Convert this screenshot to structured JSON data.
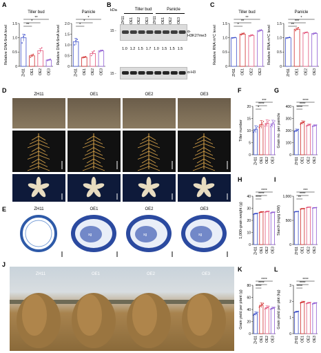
{
  "colors": {
    "blue": "#3d4fc9",
    "red": "#d02a2a",
    "pink": "#e2537a",
    "purple": "#8e5bd1",
    "black": "#000000"
  },
  "panels": {
    "A": "A",
    "B": "B",
    "C": "C",
    "D": "D",
    "E": "E",
    "F": "F",
    "G": "G",
    "H": "H",
    "I": "I",
    "J": "J",
    "K": "K",
    "L": "L"
  },
  "A": {
    "headers": [
      "Tiller bud",
      "Panicle"
    ],
    "charts": [
      {
        "type": "bar",
        "title": "Tiller bud",
        "ylabel": "Relative DNA 6mA level",
        "ylim": [
          0,
          1.5
        ],
        "yticks": [
          "0",
          "0.5",
          "1.0",
          "1.5"
        ],
        "categories": [
          "ZH11",
          "OE1",
          "OE2",
          "OE3"
        ],
        "values": [
          1.0,
          0.37,
          0.55,
          0.22
        ],
        "points": [
          [
            0.82,
            1.05,
            1.1
          ],
          [
            0.32,
            0.36,
            0.42
          ],
          [
            0.45,
            0.55,
            0.65
          ],
          [
            0.2,
            0.22,
            0.25
          ]
        ],
        "errors": [
          0.12,
          0.04,
          0.07,
          0.02
        ],
        "sig": [
          {
            "from": 0,
            "to": 3,
            "label": "**"
          },
          {
            "from": 0,
            "to": 2,
            "label": "*"
          },
          {
            "from": 0,
            "to": 1,
            "label": "**"
          }
        ]
      },
      {
        "type": "bar",
        "title": "Panicle",
        "ylabel": "Relative DNA 6mA level",
        "ylim": [
          0,
          2.0
        ],
        "yticks": [
          "0",
          "0.5",
          "1.0",
          "1.5",
          "2.0"
        ],
        "categories": [
          "ZH11",
          "OE1",
          "OE2",
          "OE3"
        ],
        "values": [
          1.15,
          0.42,
          0.6,
          0.72
        ],
        "points": [
          [
            1.0,
            1.2,
            1.25
          ],
          [
            0.4,
            0.42,
            0.45
          ],
          [
            0.5,
            0.65,
            0.72
          ],
          [
            0.68,
            0.72,
            0.75
          ]
        ],
        "errors": [
          0.16,
          0.03,
          0.08,
          0.04
        ],
        "sig": [
          {
            "from": 0,
            "to": 3,
            "label": "*"
          },
          {
            "from": 0,
            "to": 2,
            "label": "*"
          },
          {
            "from": 0,
            "to": 1,
            "label": "*"
          }
        ]
      }
    ]
  },
  "B": {
    "kda_label": "kDa",
    "groups": [
      "Tiller bud",
      "Panicle"
    ],
    "lanes": [
      "ZH11",
      "OE1",
      "OE2",
      "OE3",
      "ZH11",
      "OE1",
      "OE2",
      "OE3"
    ],
    "marker1": "15 -",
    "marker2": "15 -",
    "antibody1": "α-H3K27me3",
    "antibody2": "α-H3",
    "ratios": [
      "1.0",
      "1.2",
      "1.5",
      "1.7",
      "1.0",
      "1.5",
      "1.5",
      "1.5"
    ]
  },
  "C": {
    "headers": [
      "Tiller bud",
      "Panicle"
    ],
    "charts": [
      {
        "type": "bar",
        "title": "Tiller bud",
        "ylabel": "Relative RNA m⁶C level",
        "ylim": [
          0,
          1.5
        ],
        "yticks": [
          "0",
          "0.5",
          "1.0",
          "1.5"
        ],
        "categories": [
          "ZH11",
          "OE1",
          "OE2",
          "OE3"
        ],
        "values": [
          1.0,
          1.13,
          1.08,
          1.25
        ],
        "points": [
          [
            0.99,
            1.0,
            1.01
          ],
          [
            1.1,
            1.13,
            1.16
          ],
          [
            1.05,
            1.08,
            1.1
          ],
          [
            1.22,
            1.25,
            1.28
          ]
        ],
        "errors": [
          0.01,
          0.03,
          0.03,
          0.03
        ],
        "sig": [
          {
            "from": 0,
            "to": 3,
            "label": "**"
          },
          {
            "from": 0,
            "to": 2,
            "label": "**"
          },
          {
            "from": 0,
            "to": 1,
            "label": "*"
          }
        ]
      },
      {
        "type": "bar",
        "title": "Panicle",
        "ylabel": "Relative RNA m⁶C level",
        "ylim": [
          0,
          1.5
        ],
        "yticks": [
          "0",
          "0.5",
          "1.0",
          "1.5"
        ],
        "categories": [
          "ZH11",
          "OE1",
          "OE2",
          "OE3"
        ],
        "values": [
          1.0,
          1.3,
          1.18,
          1.15
        ],
        "points": [
          [
            0.98,
            1.0,
            1.02
          ],
          [
            1.25,
            1.3,
            1.35
          ],
          [
            1.15,
            1.18,
            1.2
          ],
          [
            1.12,
            1.15,
            1.17
          ]
        ],
        "errors": [
          0.01,
          0.04,
          0.02,
          0.02
        ],
        "sig": [
          {
            "from": 0,
            "to": 3,
            "label": "*"
          },
          {
            "from": 0,
            "to": 2,
            "label": "***"
          },
          {
            "from": 0,
            "to": 1,
            "label": "**"
          }
        ]
      }
    ]
  },
  "D": {
    "varieties": [
      "ZH11",
      "OE1",
      "OE2",
      "OE3"
    ]
  },
  "E": {
    "varieties": [
      "ZH11",
      "OE1",
      "OE2",
      "OE3"
    ],
    "sg": "sg"
  },
  "F": {
    "type": "bar",
    "ylabel": "Tiller number",
    "ylim": [
      0,
      20
    ],
    "yticks": [
      "0",
      "5",
      "10",
      "15",
      "20"
    ],
    "categories": [
      "ZH11",
      "OE1",
      "OE2",
      "OE3"
    ],
    "values": [
      10.5,
      12.5,
      13.0,
      12.8
    ],
    "errors": [
      1.5,
      1.6,
      1.5,
      1.5
    ],
    "sig": [
      {
        "from": 0,
        "to": 3,
        "label": "***"
      },
      {
        "from": 0,
        "to": 2,
        "label": "****"
      },
      {
        "from": 0,
        "to": 1,
        "label": "*"
      }
    ]
  },
  "G": {
    "type": "bar",
    "ylabel": "Grain no. per panicle",
    "ylim": [
      0,
      400
    ],
    "yticks": [
      "0",
      "100",
      "200",
      "300",
      "400"
    ],
    "categories": [
      "ZH11",
      "OE1",
      "OE2",
      "OE3"
    ],
    "values": [
      200,
      265,
      245,
      240
    ],
    "errors": [
      12,
      15,
      10,
      8
    ],
    "sig": [
      {
        "from": 0,
        "to": 3,
        "label": "****"
      },
      {
        "from": 0,
        "to": 2,
        "label": "****"
      },
      {
        "from": 0,
        "to": 1,
        "label": "****"
      }
    ]
  },
  "H": {
    "type": "bar",
    "ylabel": "1,000-grain weight (g)",
    "ylim": [
      0,
      40
    ],
    "yticks": [
      "0",
      "10",
      "20",
      "30",
      "40"
    ],
    "categories": [
      "ZH11",
      "OE1",
      "OE2",
      "OE3"
    ],
    "values": [
      25.5,
      26.8,
      27.2,
      26.5
    ],
    "errors": [
      0.5,
      0.5,
      0.5,
      0.5
    ],
    "sig": [
      {
        "from": 0,
        "to": 3,
        "label": "****"
      },
      {
        "from": 0,
        "to": 2,
        "label": "****"
      },
      {
        "from": 0,
        "to": 1,
        "label": "****"
      }
    ]
  },
  "I": {
    "type": "bar",
    "ylabel": "Starch (mg/g DW)",
    "ylim": [
      0,
      1000
    ],
    "yticks": [
      "0",
      "500",
      "1,000"
    ],
    "categories": [
      "ZH11",
      "OE1",
      "OE2",
      "OE3"
    ],
    "values": [
      680,
      740,
      770,
      760
    ],
    "errors": [
      8,
      8,
      8,
      8
    ],
    "sig": [
      {
        "from": 0,
        "to": 3,
        "label": "***"
      },
      {
        "from": 0,
        "to": 2,
        "label": "****"
      },
      {
        "from": 0,
        "to": 1,
        "label": "**"
      }
    ]
  },
  "J": {
    "varieties": [
      "ZH11",
      "OE1",
      "OE2",
      "OE3"
    ]
  },
  "K": {
    "type": "bar",
    "ylabel": "Grain yield per plant (g)",
    "ylim": [
      0,
      80
    ],
    "yticks": [
      "0",
      "20",
      "40",
      "60",
      "80"
    ],
    "categories": [
      "ZH11",
      "OE1",
      "OE2",
      "OE3"
    ],
    "values": [
      33,
      47,
      43,
      42
    ],
    "errors": [
      3,
      4,
      3,
      2
    ],
    "sig": [
      {
        "from": 0,
        "to": 3,
        "label": "****"
      },
      {
        "from": 0,
        "to": 2,
        "label": "****"
      },
      {
        "from": 0,
        "to": 1,
        "label": "****"
      }
    ]
  },
  "L": {
    "type": "bar",
    "ylabel": "Grain yield per plot (kg)",
    "ylim": [
      0,
      3
    ],
    "yticks": [
      "0",
      "1",
      "2",
      "3"
    ],
    "categories": [
      "ZH11",
      "OE1",
      "OE2",
      "OE3"
    ],
    "values": [
      1.35,
      1.95,
      1.9,
      1.88
    ],
    "errors": [
      0.05,
      0.06,
      0.05,
      0.05
    ],
    "sig": [
      {
        "from": 0,
        "to": 3,
        "label": "****"
      },
      {
        "from": 0,
        "to": 2,
        "label": "****"
      },
      {
        "from": 0,
        "to": 1,
        "label": "****"
      }
    ]
  }
}
